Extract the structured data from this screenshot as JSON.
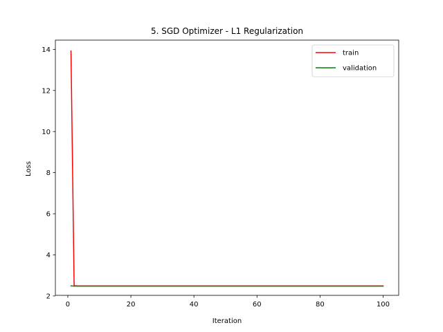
{
  "chart_data": {
    "type": "line",
    "title": "5. SGD Optimizer - L1 Regularization",
    "xlabel": "Iteration",
    "ylabel": "Loss",
    "xlim": [
      -3.95,
      104.95
    ],
    "ylim": [
      2.03,
      14.45
    ],
    "xticks": [
      0,
      20,
      40,
      60,
      80,
      100
    ],
    "yticks": [
      2,
      4,
      6,
      8,
      10,
      12,
      14
    ],
    "legend_position": "upper right",
    "grid": false,
    "series": [
      {
        "name": "train",
        "color": "#ff0000",
        "x": [
          1,
          2,
          3,
          100
        ],
        "y": [
          13.92,
          2.5,
          2.49,
          2.49
        ]
      },
      {
        "name": "validation",
        "color": "#008000",
        "x": [
          1,
          2,
          3,
          100
        ],
        "y": [
          2.49,
          2.48,
          2.48,
          2.48
        ]
      }
    ]
  }
}
